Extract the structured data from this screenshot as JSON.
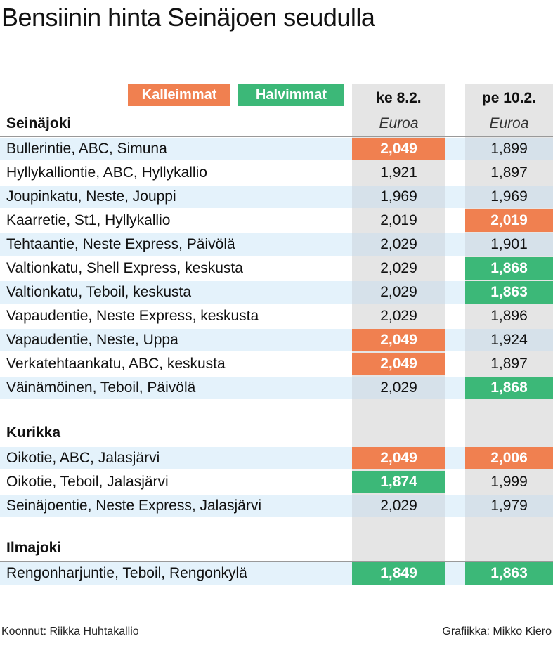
{
  "title": "Bensiinin hinta Seinäjoen seudulla",
  "legend": {
    "expensive": "Kalleimmat",
    "cheapest": "Halvimmat"
  },
  "colors": {
    "expensive": "#f08050",
    "cheapest": "#3cb878",
    "row_alt": "#e4f2fb",
    "column_grey": "#e5e5e5"
  },
  "columns": [
    {
      "date": "ke 8.2.",
      "unit": "Euroa"
    },
    {
      "date": "pe 10.2.",
      "unit": "Euroa"
    }
  ],
  "footer": {
    "left": "Koonnut: Riikka Huhtakallio",
    "right": "Grafiikka: Mikko Kiero"
  },
  "chart_data": {
    "type": "table",
    "title": "Bensiinin hinta Seinäjoen seudulla",
    "columns": [
      "ke 8.2.",
      "pe 10.2."
    ],
    "unit": "Euroa",
    "sections": [
      {
        "name": "Seinäjoki",
        "rows": [
          {
            "station": "Bullerintie, ABC, Simuna",
            "values": [
              "2,049",
              "1,899"
            ],
            "marks": [
              "expensive",
              ""
            ]
          },
          {
            "station": "Hyllykalliontie, ABC, Hyllykallio",
            "values": [
              "1,921",
              "1,897"
            ],
            "marks": [
              "",
              ""
            ]
          },
          {
            "station": "Joupinkatu, Neste, Jouppi",
            "values": [
              "1,969",
              "1,969"
            ],
            "marks": [
              "",
              ""
            ]
          },
          {
            "station": "Kaarretie, St1, Hyllykallio",
            "values": [
              "2,019",
              "2,019"
            ],
            "marks": [
              "",
              "expensive"
            ]
          },
          {
            "station": "Tehtaantie, Neste Express, Päivölä",
            "values": [
              "2,029",
              "1,901"
            ],
            "marks": [
              "",
              ""
            ]
          },
          {
            "station": "Valtionkatu, Shell Express, keskusta",
            "values": [
              "2,029",
              "1,868"
            ],
            "marks": [
              "",
              "cheapest"
            ]
          },
          {
            "station": "Valtionkatu, Teboil, keskusta",
            "values": [
              "2,029",
              "1,863"
            ],
            "marks": [
              "",
              "cheapest"
            ]
          },
          {
            "station": "Vapaudentie, Neste Express, keskusta",
            "values": [
              "2,029",
              "1,896"
            ],
            "marks": [
              "",
              ""
            ]
          },
          {
            "station": "Vapaudentie, Neste, Uppa",
            "values": [
              "2,049",
              "1,924"
            ],
            "marks": [
              "expensive",
              ""
            ]
          },
          {
            "station": "Verkatehtaankatu, ABC, keskusta",
            "values": [
              "2,049",
              "1,897"
            ],
            "marks": [
              "expensive",
              ""
            ]
          },
          {
            "station": "Väinämöinen, Teboil, Päivölä",
            "values": [
              "2,029",
              "1,868"
            ],
            "marks": [
              "",
              "cheapest"
            ]
          }
        ]
      },
      {
        "name": "Kurikka",
        "rows": [
          {
            "station": "Oikotie, ABC, Jalasjärvi",
            "values": [
              "2,049",
              "2,006"
            ],
            "marks": [
              "expensive",
              "expensive"
            ]
          },
          {
            "station": "Oikotie, Teboil, Jalasjärvi",
            "values": [
              "1,874",
              "1,999"
            ],
            "marks": [
              "cheapest",
              ""
            ]
          },
          {
            "station": "Seinäjoentie, Neste Express, Jalasjärvi",
            "values": [
              "2,029",
              "1,979"
            ],
            "marks": [
              "",
              ""
            ]
          }
        ]
      },
      {
        "name": "Ilmajoki",
        "rows": [
          {
            "station": "Rengonharjuntie, Teboil, Rengonkylä",
            "values": [
              "1,849",
              "1,863"
            ],
            "marks": [
              "cheapest",
              "cheapest"
            ]
          }
        ]
      }
    ]
  }
}
